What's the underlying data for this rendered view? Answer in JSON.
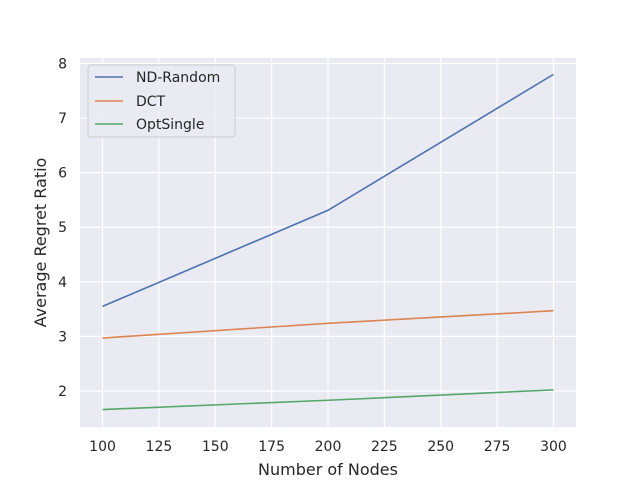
{
  "chart_data": {
    "type": "line",
    "xlabel": "Number of Nodes",
    "ylabel": "Average Regret Ratio",
    "x": [
      100,
      200,
      300
    ],
    "xlim": [
      90,
      310
    ],
    "ylim": [
      1.34,
      8.1
    ],
    "xticks": [
      "100",
      "125",
      "150",
      "175",
      "200",
      "225",
      "250",
      "275",
      "300"
    ],
    "yticks": [
      "2",
      "3",
      "4",
      "5",
      "6",
      "7",
      "8"
    ],
    "grid": true,
    "legend_position": "top-left",
    "series": [
      {
        "name": "ND-Random",
        "color": "#4c72b0",
        "values": [
          3.55,
          5.31,
          7.8
        ]
      },
      {
        "name": "DCT",
        "color": "#dd8452",
        "values": [
          2.97,
          3.24,
          3.47
        ]
      },
      {
        "name": "OptSingle",
        "color": "#55a868",
        "values": [
          1.66,
          1.83,
          2.02
        ]
      }
    ]
  }
}
